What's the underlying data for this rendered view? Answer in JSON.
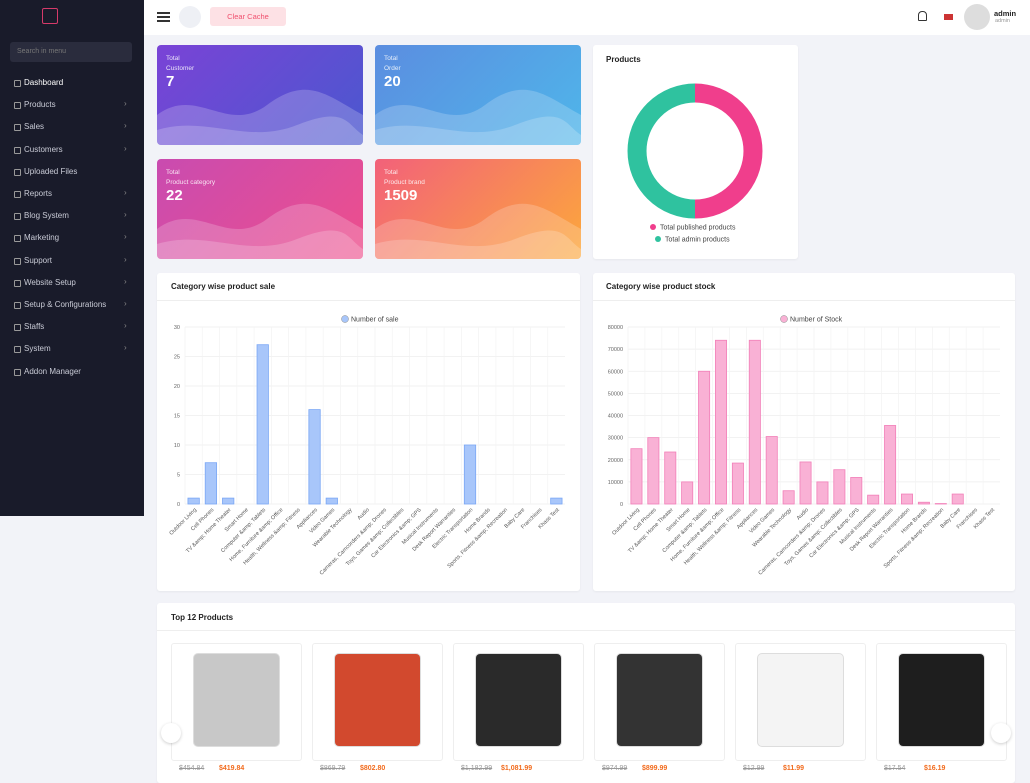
{
  "search_placeholder": "Search in menu",
  "menu": [
    {
      "label": "Dashboard",
      "submenu": false
    },
    {
      "label": "Products",
      "submenu": true
    },
    {
      "label": "Sales",
      "submenu": true
    },
    {
      "label": "Customers",
      "submenu": true
    },
    {
      "label": "Uploaded Files",
      "submenu": false
    },
    {
      "label": "Reports",
      "submenu": true
    },
    {
      "label": "Blog System",
      "submenu": true
    },
    {
      "label": "Marketing",
      "submenu": true
    },
    {
      "label": "Support",
      "submenu": true
    },
    {
      "label": "Website Setup",
      "submenu": true
    },
    {
      "label": "Setup & Configurations",
      "submenu": true
    },
    {
      "label": "Staffs",
      "submenu": true
    },
    {
      "label": "System",
      "submenu": true
    },
    {
      "label": "Addon Manager",
      "submenu": false
    }
  ],
  "topbar": {
    "clear_cache": "Clear Cache",
    "user_name": "admin",
    "user_role": "admin"
  },
  "stats": [
    {
      "title": "Total",
      "subtitle": "Customer",
      "value": 7
    },
    {
      "title": "Total",
      "subtitle": "Order",
      "value": 20
    },
    {
      "title": "Total",
      "subtitle": "Product category",
      "value": 22
    },
    {
      "title": "Total",
      "subtitle": "Product brand",
      "value": 1509
    }
  ],
  "charts": [
    {
      "type": "pie",
      "title": "Products",
      "categories": [
        "Total published products",
        "Total admin products"
      ],
      "values": [
        50,
        50
      ],
      "colors": [
        "#f03e8c",
        "#2fc29f"
      ]
    },
    {
      "type": "bar",
      "title": "Category wise product sale",
      "categories": [
        "Outdoor Living",
        "Cell Phones",
        "TV &amp; Home Theater",
        "Smart Home",
        "Computer &amp; Tablets",
        "Home, Furniture &amp; Office",
        "Health, Wellness &amp; Fitness",
        "Appliances",
        "Video Games",
        "Wearable Technology",
        "Audio",
        "Cameras, Camcorders &amp; Drones",
        "Toys, Games &amp; Collectibles",
        "Car Electronics &amp; GPS",
        "Musical Instruments",
        "Desk Report Warranties",
        "Electric Transportation",
        "Home Brands",
        "Sports, Fitness &amp; Recreation",
        "Baby Care",
        "Franchises",
        "Khass Test"
      ],
      "series": [
        {
          "name": "Number of sale",
          "color": "#a8c6fa",
          "values": [
            1,
            7,
            1,
            0,
            27,
            0,
            0,
            16,
            1,
            0,
            0,
            0,
            0,
            0,
            0,
            0,
            10,
            0,
            0,
            0,
            0,
            1
          ]
        }
      ],
      "ylim": [
        0,
        30
      ],
      "yticks": [
        0,
        5,
        10,
        15,
        20,
        25,
        30
      ],
      "grid": true
    },
    {
      "type": "bar",
      "title": "Category wise product stock",
      "categories": [
        "Outdoor Living",
        "Cell Phones",
        "TV &amp; Home Theater",
        "Smart Home",
        "Computer &amp; Tablets",
        "Home, Furniture &amp; Office",
        "Health, Wellness &amp; Fitness",
        "Appliances",
        "Video Games",
        "Wearable Technology",
        "Audio",
        "Cameras, Camcorders &amp; Drones",
        "Toys, Games &amp; Collectibles",
        "Car Electronics &amp; GPS",
        "Musical Instruments",
        "Desk Report Warranties",
        "Electric Transportation",
        "Home Brands",
        "Sports, Fitness &amp; Recreation",
        "Baby Care",
        "Franchises",
        "Khass Test"
      ],
      "series": [
        {
          "name": "Number of Stock",
          "color": "#f9b1d5",
          "values": [
            25000,
            30000,
            23500,
            10000,
            60000,
            74000,
            18500,
            74000,
            30500,
            6000,
            19000,
            10000,
            15500,
            12000,
            4000,
            35500,
            4500,
            800,
            200,
            4500,
            0,
            0
          ]
        }
      ],
      "ylim": [
        0,
        80000
      ],
      "yticks": [
        0,
        10000,
        20000,
        30000,
        40000,
        50000,
        60000,
        70000,
        80000
      ],
      "grid": true
    }
  ],
  "top_products": {
    "title": "Top 12 Products",
    "items": [
      {
        "old_price": "$454.84",
        "price": "$419.84"
      },
      {
        "old_price": "$869.79",
        "price": "$802.80"
      },
      {
        "old_price": "$1,182.99",
        "price": "$1,081.99"
      },
      {
        "old_price": "$974.99",
        "price": "$899.99"
      },
      {
        "old_price": "$12.99",
        "price": "$11.99"
      },
      {
        "old_price": "$17.54",
        "price": "$16.19"
      }
    ]
  }
}
